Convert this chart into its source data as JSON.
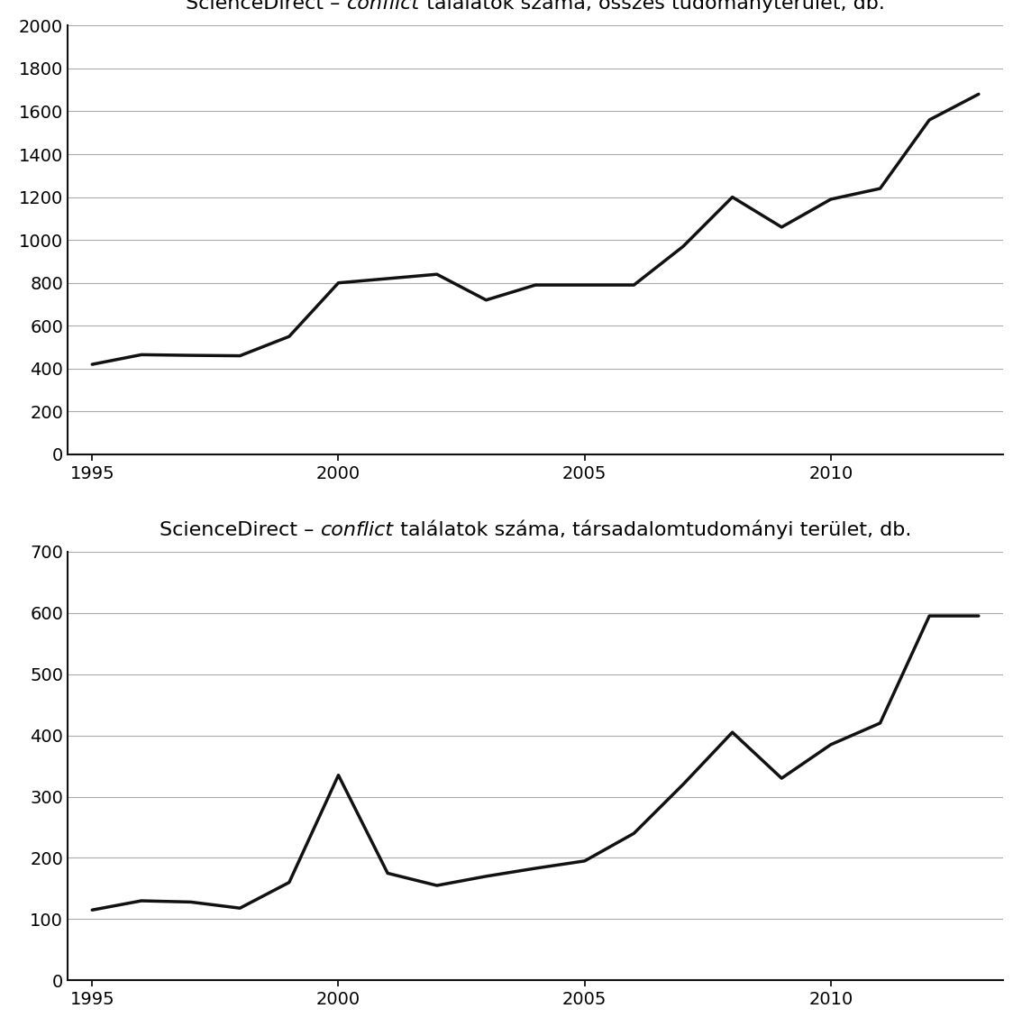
{
  "title1_pre": "ScienceDirect – ",
  "title1_italic": "conflict",
  "title1_post": " találatok száma, összes tudományterület, db.",
  "title2_pre": "ScienceDirect – ",
  "title2_italic": "conflict",
  "title2_post": " találatok száma, társadalomtudományi terület, db.",
  "years1": [
    1995,
    1996,
    1997,
    1998,
    1999,
    2000,
    2001,
    2002,
    2003,
    2004,
    2005,
    2006,
    2007,
    2008,
    2009,
    2010,
    2011,
    2012,
    2013
  ],
  "values1": [
    420,
    465,
    462,
    460,
    550,
    800,
    820,
    840,
    720,
    790,
    790,
    790,
    970,
    1200,
    1060,
    1190,
    1240,
    1560,
    1680
  ],
  "ylim1": [
    0,
    2000
  ],
  "yticks1": [
    0,
    200,
    400,
    600,
    800,
    1000,
    1200,
    1400,
    1600,
    1800,
    2000
  ],
  "years2": [
    1995,
    1996,
    1997,
    1998,
    1999,
    2000,
    2001,
    2002,
    2003,
    2004,
    2005,
    2006,
    2007,
    2008,
    2009,
    2010,
    2011,
    2012,
    2013
  ],
  "values2": [
    115,
    130,
    128,
    118,
    160,
    335,
    175,
    155,
    170,
    183,
    195,
    240,
    320,
    405,
    330,
    385,
    420,
    595,
    595
  ],
  "ylim2": [
    0,
    700
  ],
  "yticks2": [
    0,
    100,
    200,
    300,
    400,
    500,
    600,
    700
  ],
  "xticks": [
    1995,
    2000,
    2005,
    2010
  ],
  "line_color": "#111111",
  "line_width": 2.5,
  "bg_color": "#ffffff",
  "title_fontsize": 16,
  "tick_fontsize": 14,
  "grid_color": "#aaaaaa",
  "grid_linewidth": 0.8
}
